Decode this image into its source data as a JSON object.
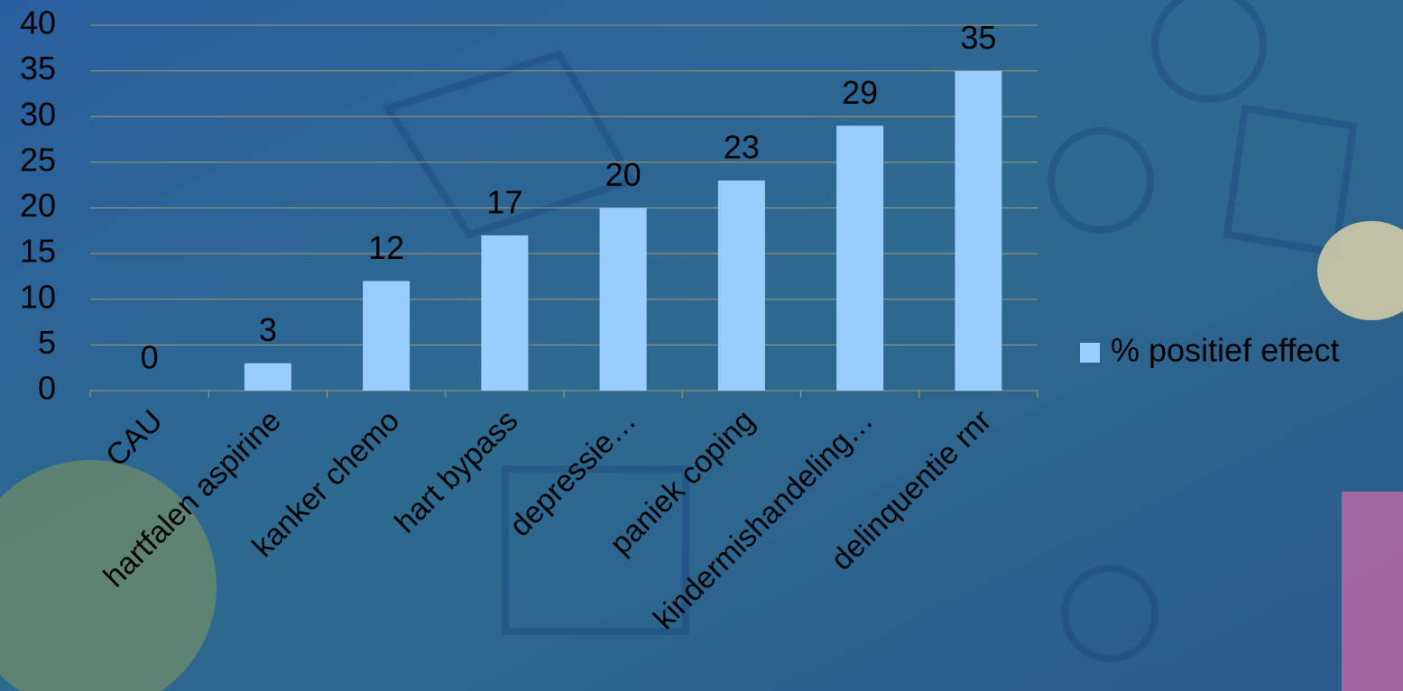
{
  "chart_data": {
    "type": "bar",
    "categories": [
      "CAU",
      "hartfalen aspirine",
      "kanker chemo",
      "hart bypass",
      "depressie…",
      "paniek coping",
      "kindermishandeling…",
      "delinquentie rnr"
    ],
    "series": [
      {
        "name": "% positief effect",
        "color": "#99ccff",
        "values": [
          0,
          3,
          12,
          17,
          20,
          23,
          29,
          35
        ]
      }
    ],
    "ylim": [
      0,
      40
    ],
    "yticks": [
      0,
      5,
      10,
      15,
      20,
      25,
      30,
      35,
      40
    ],
    "grid": true,
    "legend": "right"
  }
}
